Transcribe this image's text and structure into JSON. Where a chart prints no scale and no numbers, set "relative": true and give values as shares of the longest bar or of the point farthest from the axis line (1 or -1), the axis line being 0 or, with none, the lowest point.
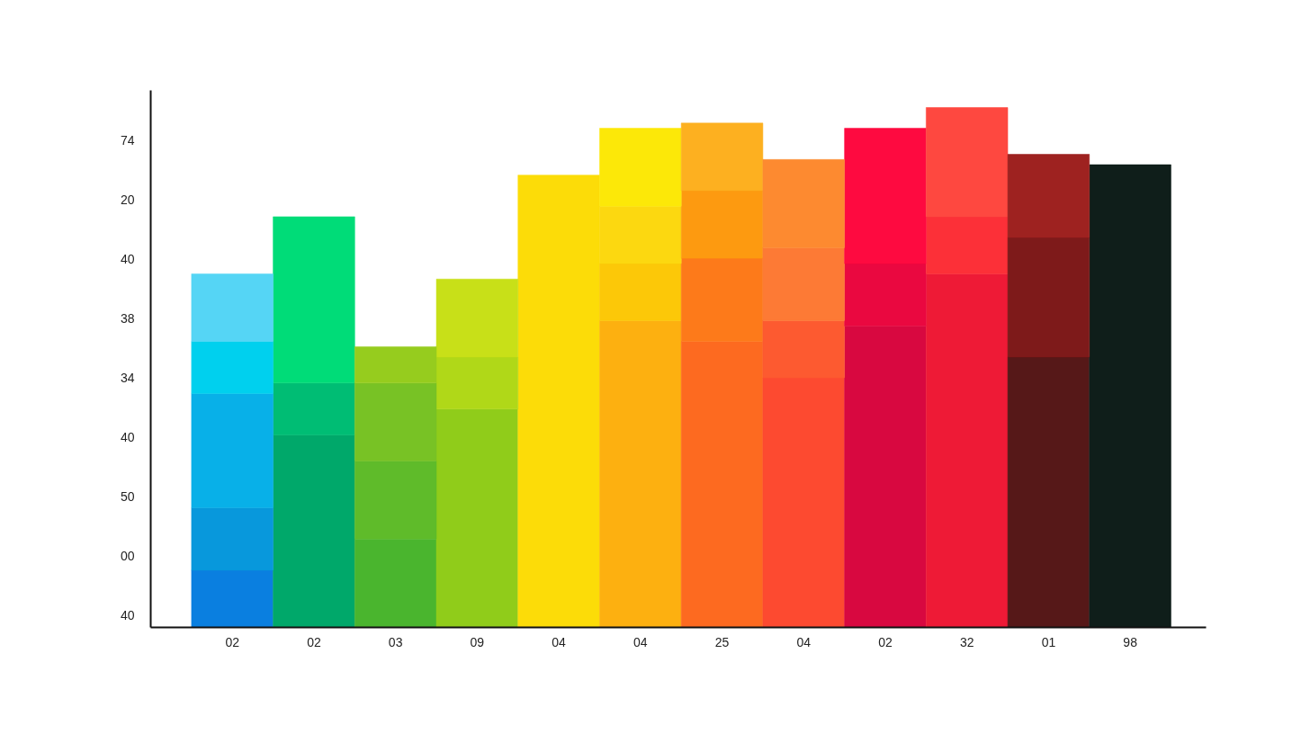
{
  "chart_data": {
    "type": "bar",
    "stacked": true,
    "relative": true,
    "categories": [
      "02",
      "02",
      "03",
      "09",
      "04",
      "04",
      "25",
      "04",
      "02",
      "32",
      "01",
      "98"
    ],
    "series": [
      {
        "values": [
          0.11,
          0.37,
          0.17,
          0.42,
          0.87,
          0.59,
          0.55,
          0.48,
          0.58,
          0.68,
          0.52,
          0.89
        ],
        "colors": [
          "#0a7fe0",
          "#00a86a",
          "#4ab52e",
          "#90cc1a",
          "#fcdc08",
          "#fdb010",
          "#fd6a20",
          "#fd4a30",
          "#d80840",
          "#ee1a36",
          "#561818",
          "#0f1e1a"
        ]
      },
      {
        "values": [
          0.12,
          0.1,
          0.15,
          0.1,
          null,
          0.11,
          0.16,
          0.11,
          0.12,
          0.11,
          0.23,
          null
        ],
        "colors": [
          "#0898dc",
          "#00bd74",
          "#5fbb2a",
          "#b0d818",
          null,
          "#fcc808",
          "#fd7a1a",
          "#fd5a30",
          "#ea0840",
          "#fc3038",
          "#7e1a1a",
          null
        ]
      },
      {
        "values": [
          0.22,
          0.32,
          0.15,
          0.15,
          null,
          0.11,
          0.13,
          0.14,
          0.26,
          0.21,
          0.16,
          null
        ],
        "colors": [
          "#08b0e8",
          "#00dc78",
          "#78c225",
          "#c8e018",
          null,
          "#fcd810",
          "#fd9a10",
          "#fd7a35",
          "#fe0a40",
          "#fe4840",
          "#9e2220",
          null
        ]
      },
      {
        "values": [
          0.1,
          null,
          0.07,
          null,
          null,
          0.15,
          0.13,
          0.17,
          null,
          null,
          null,
          null
        ],
        "colors": [
          "#00d0ee",
          null,
          "#96cc1e",
          null,
          null,
          "#fce808",
          "#fdb020",
          "#fd8a30",
          null,
          null,
          null,
          null
        ]
      },
      {
        "values": [
          0.13,
          null,
          null,
          null,
          null,
          null,
          null,
          null,
          null,
          null,
          null,
          null
        ],
        "colors": [
          "#55d5f5",
          null,
          null,
          null,
          null,
          null,
          null,
          null,
          null,
          null,
          null,
          null
        ]
      }
    ],
    "annotations": [
      "40",
      "00",
      "50",
      "40",
      "34",
      "38",
      "40",
      "20",
      "74"
    ],
    "grid": false
  }
}
